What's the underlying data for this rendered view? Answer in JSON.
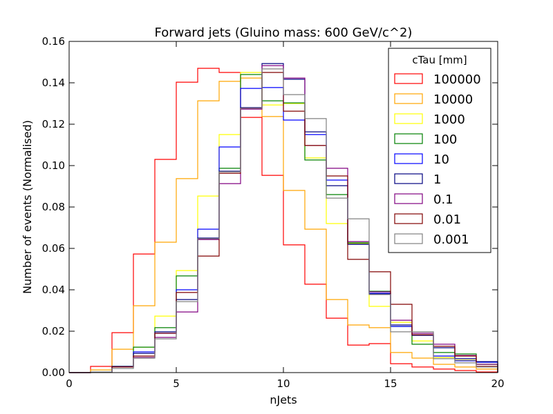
{
  "chart_data": {
    "type": "line",
    "title": "Forward jets (Gluino mass: 600 GeV/c^2)",
    "xlabel": "nJets",
    "ylabel": "Number of events (Normalised)",
    "xlim": [
      0,
      20
    ],
    "ylim": [
      0,
      0.16
    ],
    "xticks": [
      "0",
      "5",
      "10",
      "15",
      "20"
    ],
    "yticks": [
      "0.00",
      "0.02",
      "0.04",
      "0.06",
      "0.08",
      "0.10",
      "0.12",
      "0.14",
      "0.16"
    ],
    "grid": false,
    "legend": {
      "title": "cTau [mm]",
      "position": "top-right"
    },
    "bin_edges": [
      0,
      1,
      2,
      3,
      4,
      5,
      6,
      7,
      8,
      9,
      10,
      11,
      12,
      13,
      14,
      15,
      16,
      17,
      18,
      19,
      20
    ],
    "series": [
      {
        "name": "100000",
        "color": "#ff0000",
        "values": [
          0.0,
          0.003,
          0.0193,
          0.0573,
          0.103,
          0.1403,
          0.147,
          0.145,
          0.1233,
          0.0953,
          0.0617,
          0.0427,
          0.0263,
          0.0133,
          0.014,
          0.0043,
          0.0027,
          0.0017,
          0.001,
          0.0003
        ]
      },
      {
        "name": "10000",
        "color": "#ffa500",
        "values": [
          0.0,
          0.0013,
          0.0113,
          0.0323,
          0.063,
          0.0937,
          0.1313,
          0.1407,
          0.1423,
          0.1237,
          0.088,
          0.0693,
          0.0353,
          0.023,
          0.0217,
          0.0097,
          0.007,
          0.004,
          0.0027,
          0.0017
        ]
      },
      {
        "name": "1000",
        "color": "#ffff00",
        "values": [
          0.0,
          0.0003,
          0.003,
          0.0123,
          0.0273,
          0.0493,
          0.0853,
          0.115,
          0.145,
          0.1293,
          0.13,
          0.1037,
          0.072,
          0.0623,
          0.032,
          0.0243,
          0.0153,
          0.0073,
          0.006,
          0.004
        ]
      },
      {
        "name": "100",
        "color": "#008000",
        "values": [
          0.0,
          0.0003,
          0.003,
          0.0123,
          0.0217,
          0.0467,
          0.0647,
          0.0987,
          0.144,
          0.1313,
          0.1303,
          0.1027,
          0.086,
          0.0627,
          0.0393,
          0.0223,
          0.0137,
          0.0097,
          0.009,
          0.004
        ]
      },
      {
        "name": "10",
        "color": "#0000ff",
        "values": [
          0.0,
          0.0003,
          0.0027,
          0.01,
          0.019,
          0.04,
          0.0693,
          0.109,
          0.1373,
          0.1377,
          0.122,
          0.115,
          0.093,
          0.062,
          0.0383,
          0.0223,
          0.0183,
          0.008,
          0.0057,
          0.005
        ]
      },
      {
        "name": "1",
        "color": "#000080",
        "values": [
          0.0,
          0.0003,
          0.003,
          0.0093,
          0.0197,
          0.0353,
          0.065,
          0.0973,
          0.128,
          0.1493,
          0.1417,
          0.1163,
          0.0903,
          0.062,
          0.038,
          0.023,
          0.018,
          0.012,
          0.0067,
          0.0053
        ]
      },
      {
        "name": "0.1",
        "color": "#800080",
        "values": [
          0.0,
          0.0003,
          0.0027,
          0.0073,
          0.017,
          0.0293,
          0.0643,
          0.0913,
          0.1273,
          0.1483,
          0.1423,
          0.1097,
          0.0987,
          0.0633,
          0.039,
          0.0253,
          0.019,
          0.0137,
          0.0083,
          0.004
        ]
      },
      {
        "name": "0.01",
        "color": "#800000",
        "values": [
          0.0,
          0.0003,
          0.0027,
          0.008,
          0.019,
          0.0387,
          0.0563,
          0.0963,
          0.1277,
          0.145,
          0.1263,
          0.1097,
          0.095,
          0.0547,
          0.0487,
          0.033,
          0.0183,
          0.0127,
          0.008,
          0.003
        ]
      },
      {
        "name": "0.001",
        "color": "#808080",
        "values": [
          0.0,
          0.0003,
          0.002,
          0.007,
          0.0163,
          0.0343,
          0.0647,
          0.097,
          0.1277,
          0.1467,
          0.1343,
          0.1227,
          0.0843,
          0.0743,
          0.0377,
          0.0197,
          0.0197,
          0.0067,
          0.0047,
          0.0027
        ]
      }
    ]
  }
}
